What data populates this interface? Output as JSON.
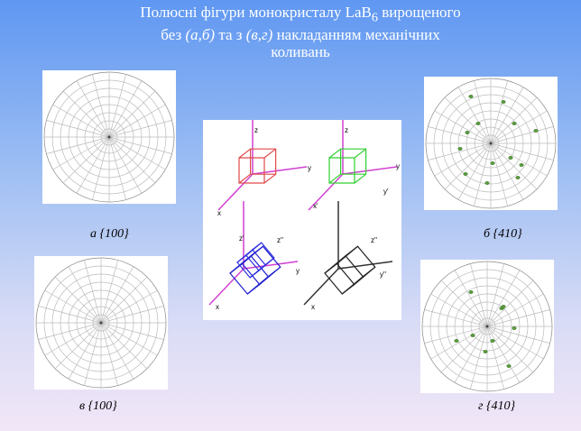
{
  "title": {
    "line1": [
      "Полюсні фігури  монокристалу LaB",
      "6",
      " вирощеного"
    ],
    "line2": [
      "без ",
      "(а,б)",
      " та з ",
      "(в,г)",
      " накладанням механічних"
    ],
    "line3": "коливань"
  },
  "captions": [
    "а  {100}",
    "б {410}",
    "в {100}",
    "г {410}"
  ],
  "diagram": {
    "labels": [
      "z",
      "y",
      "x",
      "z",
      "y",
      "x'",
      "y'",
      "z'",
      "z''",
      "y",
      "x",
      "z''",
      "y''",
      "x"
    ]
  }
}
